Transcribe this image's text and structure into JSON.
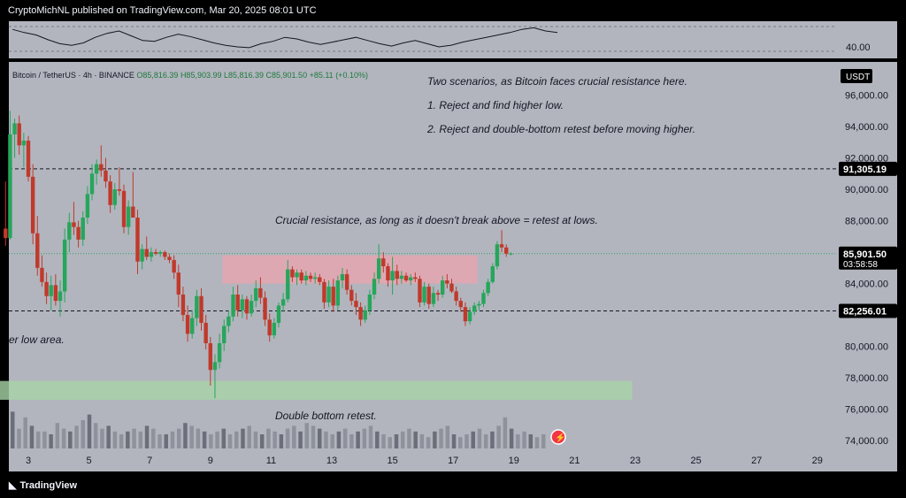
{
  "publisher": {
    "text": "CryptoMichNL published on TradingView.com, Mar 20, 2025 08:01 UTC"
  },
  "footer": {
    "brand": "TradingView",
    "brand_icon": "tradingview-logo-icon"
  },
  "colors": {
    "background": "#b2b5be",
    "up": "#26a65b",
    "down": "#c0392b",
    "resistance_zone": "#e8a5b0",
    "support_zone": "#a8d5a8",
    "label_bg": "#000000"
  },
  "oscillator": {
    "level_label": "40.00"
  },
  "currency_tag": "USDT",
  "chart_data": {
    "type": "candlestick",
    "symbol": "Bitcoin / TetherUS · 4h · BINANCE",
    "ohlc_header": {
      "open": "O85,816.39",
      "high": "H85,903.99",
      "low": "L85,816.39",
      "close": "C85,901.50",
      "change": "+85.11 (+0.10%)"
    },
    "x_ticks": [
      "3",
      "5",
      "7",
      "9",
      "11",
      "13",
      "15",
      "17",
      "19",
      "21",
      "23",
      "25",
      "27",
      "29"
    ],
    "y_ticks": [
      "96,000.00",
      "94,000.00",
      "92,000.00",
      "90,000.00",
      "88,000.00",
      "84,000.00",
      "80,000.00",
      "78,000.00",
      "76,000.00",
      "74,000.00"
    ],
    "ylim": [
      73500,
      98000
    ],
    "price_labels": [
      {
        "text": "91,305.19",
        "value": 91305.19
      },
      {
        "text": "85,901.50",
        "value": 85901.5,
        "sub": "03:58:58"
      },
      {
        "text": "82,256.01",
        "value": 82256.01
      }
    ],
    "horizontal_lines": [
      91305.19,
      82256.01
    ],
    "zones": [
      {
        "name": "resistance",
        "x_start": 9.4,
        "x_end": 17.8,
        "y_low": 84000,
        "y_high": 85800
      },
      {
        "name": "support",
        "x_start": 2.0,
        "x_end": 22.9,
        "y_low": 76600,
        "y_high": 77800
      }
    ],
    "annotations": [
      "Two scenarios, as Bitcoin faces crucial resistance here.",
      "1. Reject and find higher low.",
      "2. Reject and double-bottom retest before moving higher.",
      "Crucial resistance, as long as it doesn't break above = retest at lows.",
      "er low area.",
      "Double bottom retest."
    ],
    "candles": [
      {
        "day": 2.25,
        "o": 87500,
        "h": 90500,
        "l": 86400,
        "c": 86900
      },
      {
        "day": 2.4,
        "o": 86900,
        "h": 95000,
        "l": 86800,
        "c": 93500
      },
      {
        "day": 2.55,
        "o": 93500,
        "h": 94500,
        "l": 92000,
        "c": 94200
      },
      {
        "day": 2.7,
        "o": 94200,
        "h": 94700,
        "l": 92200,
        "c": 92800
      },
      {
        "day": 2.85,
        "o": 92800,
        "h": 93600,
        "l": 91400,
        "c": 93100
      },
      {
        "day": 3.0,
        "o": 93100,
        "h": 93400,
        "l": 90500,
        "c": 90800
      },
      {
        "day": 3.15,
        "o": 90800,
        "h": 91600,
        "l": 86500,
        "c": 87200
      },
      {
        "day": 3.3,
        "o": 87200,
        "h": 88300,
        "l": 84500,
        "c": 85000
      },
      {
        "day": 3.45,
        "o": 85000,
        "h": 85800,
        "l": 83800,
        "c": 84100
      },
      {
        "day": 3.6,
        "o": 84100,
        "h": 84700,
        "l": 82700,
        "c": 83200
      },
      {
        "day": 3.75,
        "o": 83200,
        "h": 84500,
        "l": 82300,
        "c": 83900
      },
      {
        "day": 3.9,
        "o": 83900,
        "h": 84600,
        "l": 82600,
        "c": 82900
      },
      {
        "day": 4.05,
        "o": 82900,
        "h": 84200,
        "l": 81900,
        "c": 83500
      },
      {
        "day": 4.2,
        "o": 83500,
        "h": 87500,
        "l": 82800,
        "c": 86800
      },
      {
        "day": 4.35,
        "o": 86800,
        "h": 88500,
        "l": 86000,
        "c": 87900
      },
      {
        "day": 4.5,
        "o": 87900,
        "h": 89200,
        "l": 87100,
        "c": 87600
      },
      {
        "day": 4.65,
        "o": 87600,
        "h": 88000,
        "l": 86300,
        "c": 86800
      },
      {
        "day": 4.8,
        "o": 86800,
        "h": 88600,
        "l": 86400,
        "c": 88200
      },
      {
        "day": 4.95,
        "o": 88200,
        "h": 90200,
        "l": 87800,
        "c": 89700
      },
      {
        "day": 5.1,
        "o": 89700,
        "h": 91600,
        "l": 89300,
        "c": 91000
      },
      {
        "day": 5.25,
        "o": 91000,
        "h": 91900,
        "l": 90300,
        "c": 91600
      },
      {
        "day": 5.4,
        "o": 91600,
        "h": 92800,
        "l": 90800,
        "c": 91200
      },
      {
        "day": 5.55,
        "o": 91200,
        "h": 92000,
        "l": 90100,
        "c": 90500
      },
      {
        "day": 5.7,
        "o": 90500,
        "h": 90900,
        "l": 88500,
        "c": 89000
      },
      {
        "day": 5.85,
        "o": 89000,
        "h": 90400,
        "l": 88700,
        "c": 90000
      },
      {
        "day": 6.0,
        "o": 90000,
        "h": 91400,
        "l": 89600,
        "c": 89900
      },
      {
        "day": 6.15,
        "o": 89900,
        "h": 90300,
        "l": 87200,
        "c": 87600
      },
      {
        "day": 6.3,
        "o": 87600,
        "h": 89300,
        "l": 87100,
        "c": 88900
      },
      {
        "day": 6.45,
        "o": 88900,
        "h": 91100,
        "l": 88400,
        "c": 88200
      },
      {
        "day": 6.6,
        "o": 88200,
        "h": 88700,
        "l": 84600,
        "c": 85400
      },
      {
        "day": 6.75,
        "o": 85400,
        "h": 86500,
        "l": 84900,
        "c": 86200
      },
      {
        "day": 6.9,
        "o": 86200,
        "h": 87000,
        "l": 85500,
        "c": 85700
      },
      {
        "day": 7.05,
        "o": 85700,
        "h": 86300,
        "l": 85400,
        "c": 86000
      },
      {
        "day": 7.2,
        "o": 86000,
        "h": 86200,
        "l": 85800,
        "c": 85900
      },
      {
        "day": 7.35,
        "o": 85900,
        "h": 86100,
        "l": 85700,
        "c": 86000
      },
      {
        "day": 7.5,
        "o": 86000,
        "h": 86100,
        "l": 85500,
        "c": 85700
      },
      {
        "day": 7.65,
        "o": 85700,
        "h": 85900,
        "l": 85300,
        "c": 85500
      },
      {
        "day": 7.8,
        "o": 85500,
        "h": 85800,
        "l": 84300,
        "c": 84700
      },
      {
        "day": 7.95,
        "o": 84700,
        "h": 85200,
        "l": 82500,
        "c": 83300
      },
      {
        "day": 8.1,
        "o": 83300,
        "h": 83800,
        "l": 81600,
        "c": 82000
      },
      {
        "day": 8.25,
        "o": 82000,
        "h": 82600,
        "l": 80300,
        "c": 80800
      },
      {
        "day": 8.4,
        "o": 80800,
        "h": 82300,
        "l": 80500,
        "c": 81800
      },
      {
        "day": 8.55,
        "o": 81800,
        "h": 83600,
        "l": 81300,
        "c": 83200
      },
      {
        "day": 8.7,
        "o": 83200,
        "h": 83700,
        "l": 81000,
        "c": 81500
      },
      {
        "day": 8.85,
        "o": 81500,
        "h": 82000,
        "l": 79800,
        "c": 80200
      },
      {
        "day": 9.0,
        "o": 80200,
        "h": 80600,
        "l": 77500,
        "c": 78500
      },
      {
        "day": 9.15,
        "o": 78500,
        "h": 79500,
        "l": 76700,
        "c": 79000
      },
      {
        "day": 9.3,
        "o": 79000,
        "h": 80800,
        "l": 78600,
        "c": 80200
      },
      {
        "day": 9.45,
        "o": 80200,
        "h": 81700,
        "l": 79700,
        "c": 81300
      },
      {
        "day": 9.6,
        "o": 81300,
        "h": 82300,
        "l": 80900,
        "c": 81900
      },
      {
        "day": 9.75,
        "o": 81900,
        "h": 83800,
        "l": 81600,
        "c": 83300
      },
      {
        "day": 9.9,
        "o": 83300,
        "h": 83900,
        "l": 81900,
        "c": 82300
      },
      {
        "day": 10.05,
        "o": 82300,
        "h": 83300,
        "l": 81800,
        "c": 83000
      },
      {
        "day": 10.2,
        "o": 83000,
        "h": 83200,
        "l": 81700,
        "c": 82100
      },
      {
        "day": 10.35,
        "o": 82100,
        "h": 83300,
        "l": 81900,
        "c": 82900
      },
      {
        "day": 10.5,
        "o": 82900,
        "h": 84200,
        "l": 82500,
        "c": 83700
      },
      {
        "day": 10.65,
        "o": 83700,
        "h": 84400,
        "l": 82700,
        "c": 83100
      },
      {
        "day": 10.8,
        "o": 83100,
        "h": 83500,
        "l": 81300,
        "c": 81700
      },
      {
        "day": 10.95,
        "o": 81700,
        "h": 82100,
        "l": 80300,
        "c": 80700
      },
      {
        "day": 11.1,
        "o": 80700,
        "h": 81800,
        "l": 80500,
        "c": 81500
      },
      {
        "day": 11.25,
        "o": 81500,
        "h": 82800,
        "l": 81200,
        "c": 82600
      },
      {
        "day": 11.4,
        "o": 82600,
        "h": 83400,
        "l": 82200,
        "c": 83000
      },
      {
        "day": 11.55,
        "o": 83000,
        "h": 85500,
        "l": 82800,
        "c": 84900
      },
      {
        "day": 11.7,
        "o": 84900,
        "h": 85100,
        "l": 84100,
        "c": 84400
      },
      {
        "day": 11.85,
        "o": 84400,
        "h": 84900,
        "l": 83900,
        "c": 84700
      },
      {
        "day": 12.0,
        "o": 84700,
        "h": 84900,
        "l": 84000,
        "c": 84200
      },
      {
        "day": 12.15,
        "o": 84200,
        "h": 84800,
        "l": 83900,
        "c": 84500
      },
      {
        "day": 12.3,
        "o": 84500,
        "h": 84700,
        "l": 84100,
        "c": 84300
      },
      {
        "day": 12.45,
        "o": 84300,
        "h": 84700,
        "l": 84000,
        "c": 84400
      },
      {
        "day": 12.6,
        "o": 84400,
        "h": 84600,
        "l": 83900,
        "c": 84100
      },
      {
        "day": 12.75,
        "o": 84100,
        "h": 84300,
        "l": 82400,
        "c": 82800
      },
      {
        "day": 12.9,
        "o": 82800,
        "h": 84200,
        "l": 82500,
        "c": 83800
      },
      {
        "day": 13.05,
        "o": 83800,
        "h": 84300,
        "l": 82200,
        "c": 82600
      },
      {
        "day": 13.2,
        "o": 82600,
        "h": 84500,
        "l": 82300,
        "c": 84200
      },
      {
        "day": 13.35,
        "o": 84200,
        "h": 85000,
        "l": 83700,
        "c": 84600
      },
      {
        "day": 13.5,
        "o": 84600,
        "h": 84900,
        "l": 83300,
        "c": 83600
      },
      {
        "day": 13.65,
        "o": 83600,
        "h": 83900,
        "l": 82600,
        "c": 82900
      },
      {
        "day": 13.8,
        "o": 82900,
        "h": 83400,
        "l": 82000,
        "c": 82500
      },
      {
        "day": 13.95,
        "o": 82500,
        "h": 82800,
        "l": 81300,
        "c": 81700
      },
      {
        "day": 14.1,
        "o": 81700,
        "h": 82600,
        "l": 81500,
        "c": 82300
      },
      {
        "day": 14.25,
        "o": 82300,
        "h": 83600,
        "l": 82000,
        "c": 83300
      },
      {
        "day": 14.4,
        "o": 83300,
        "h": 84700,
        "l": 83000,
        "c": 84300
      },
      {
        "day": 14.55,
        "o": 84300,
        "h": 86500,
        "l": 84000,
        "c": 85600
      },
      {
        "day": 14.7,
        "o": 85600,
        "h": 86000,
        "l": 84700,
        "c": 85100
      },
      {
        "day": 14.85,
        "o": 85100,
        "h": 85300,
        "l": 83800,
        "c": 84200
      },
      {
        "day": 15.0,
        "o": 84200,
        "h": 85700,
        "l": 83300,
        "c": 84800
      }
    ],
    "oscillator_values": [
      62,
      58,
      55,
      49,
      44,
      42,
      45,
      52,
      57,
      60,
      54,
      48,
      47,
      52,
      56,
      53,
      49,
      45,
      42,
      40,
      39,
      44,
      47,
      52,
      50,
      46,
      43,
      46,
      49,
      52,
      48,
      44,
      41,
      45,
      48,
      44,
      40,
      42,
      46,
      49,
      52,
      55,
      58,
      62,
      64,
      60,
      58
    ],
    "volume_values": [
      26,
      14,
      22,
      16,
      12,
      12,
      10,
      18,
      14,
      12,
      16,
      20,
      24,
      18,
      14,
      16,
      12,
      10,
      12,
      14,
      12,
      16,
      14,
      10,
      10,
      12,
      14,
      18,
      16,
      14,
      12,
      10,
      12,
      14,
      10,
      12,
      14,
      16,
      12,
      10,
      14,
      12,
      10,
      14,
      16,
      12,
      18,
      16,
      14,
      12,
      10,
      12,
      14,
      10,
      12,
      14,
      16,
      12,
      10,
      8,
      10,
      12,
      14,
      12,
      10,
      8,
      12,
      14,
      16,
      10,
      8,
      10,
      12,
      14,
      10,
      12,
      16,
      22,
      14,
      10,
      12,
      10,
      8,
      10
    ]
  }
}
